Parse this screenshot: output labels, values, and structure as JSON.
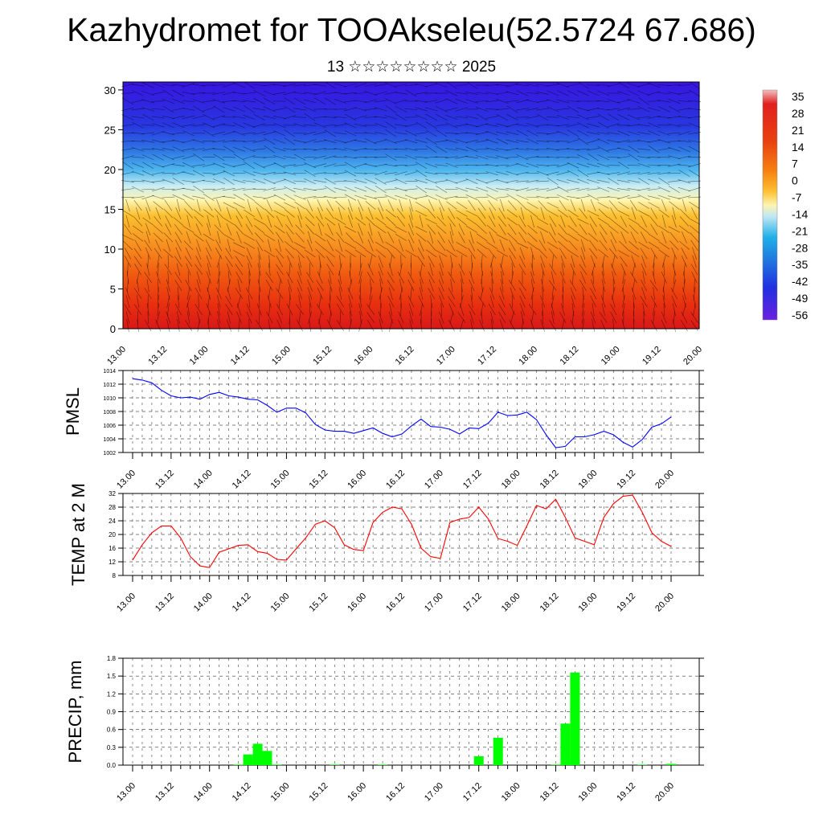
{
  "title": "Kazhydromet for TOOAkseleu(52.5724 67.686)",
  "subtitle": "13 ☆☆☆☆☆☆☆☆ 2025",
  "time_labels": [
    "13.00",
    "13.12",
    "14.00",
    "14.12",
    "15.00",
    "15.12",
    "16.00",
    "16.12",
    "17.00",
    "17.12",
    "18.00",
    "18.12",
    "19.00",
    "19.12",
    "20.00"
  ],
  "chart_data": [
    {
      "type": "heatmap",
      "description_of_axes": "x: forecast time, y: height level",
      "y_ticks": [
        0,
        5,
        10,
        15,
        20,
        25,
        30
      ],
      "ylim": [
        0,
        31
      ],
      "colorbar": {
        "labels": [
          "35",
          "28",
          "21",
          "14",
          "7",
          "0",
          "-7",
          "-14",
          "-21",
          "-28",
          "-35",
          "-42",
          "-49",
          "-56"
        ],
        "colors": [
          "#f0b0b0",
          "#e02020",
          "#d80000",
          "#e84010",
          "#f06010",
          "#f89010",
          "#fcc030",
          "#fff0a0",
          "#a8e0f0",
          "#20b0e8",
          "#2080e0",
          "#2040e0",
          "#2010e0",
          "#6020e0"
        ]
      },
      "temperature_profile_by_level": [
        {
          "level": 0,
          "value": 28
        },
        {
          "level": 5,
          "value": 18
        },
        {
          "level": 10,
          "value": 5
        },
        {
          "level": 15,
          "value": -5
        },
        {
          "level": 17,
          "value": -14
        },
        {
          "level": 20,
          "value": -35
        },
        {
          "level": 25,
          "value": -50
        },
        {
          "level": 30,
          "value": -58
        }
      ]
    },
    {
      "type": "line",
      "ylabel": "PMSL",
      "y_ticks": [
        1002,
        1004,
        1006,
        1008,
        1010,
        1012,
        1014
      ],
      "ylim": [
        1002,
        1014
      ],
      "color": "#0000ff",
      "x_step_hours": 3,
      "values": [
        1012.8,
        1012.6,
        1012.2,
        1011.1,
        1010.3,
        1010.0,
        1010.1,
        1009.8,
        1010.5,
        1010.8,
        1010.3,
        1010.1,
        1009.8,
        1009.7,
        1008.9,
        1007.9,
        1008.5,
        1008.5,
        1007.8,
        1006.1,
        1005.3,
        1005.1,
        1005.1,
        1004.8,
        1005.2,
        1005.6,
        1004.8,
        1004.3,
        1004.7,
        1005.9,
        1006.9,
        1005.8,
        1005.7,
        1005.4,
        1004.7,
        1005.6,
        1005.5,
        1006.3,
        1007.9,
        1007.4,
        1007.5,
        1007.9,
        1006.8,
        1004.6,
        1002.7,
        1002.9,
        1004.3,
        1004.3,
        1004.6,
        1005.1,
        1004.6,
        1003.5,
        1002.8,
        1003.9,
        1005.7,
        1006.2,
        1007.2
      ]
    },
    {
      "type": "line",
      "ylabel": "TEMP at 2 M",
      "y_ticks": [
        8,
        12,
        16,
        20,
        24,
        28,
        32
      ],
      "ylim": [
        8,
        32
      ],
      "color": "#ff0000",
      "x_step_hours": 3,
      "values": [
        12.5,
        17.0,
        20.5,
        22.5,
        22.5,
        19.0,
        13.5,
        10.8,
        10.3,
        14.8,
        15.8,
        16.8,
        17.0,
        15.0,
        14.5,
        12.7,
        12.5,
        15.8,
        19.0,
        23.0,
        24.0,
        22.0,
        17.0,
        15.6,
        15.3,
        23.5,
        26.5,
        28.0,
        27.5,
        23.0,
        16.0,
        13.5,
        13.0,
        23.5,
        24.5,
        25.0,
        28.0,
        24.5,
        18.8,
        18.0,
        16.8,
        22.5,
        28.5,
        27.5,
        30.3,
        25.0,
        19.0,
        18.0,
        17.0,
        25.0,
        29.0,
        31.2,
        31.5,
        26.5,
        20.5,
        18.0,
        16.5
      ]
    },
    {
      "type": "bar",
      "ylabel": "PRECIP, mm",
      "y_ticks": [
        "0.0",
        "0.3",
        "0.6",
        "0.9",
        "1.2",
        "1.5",
        "1.8"
      ],
      "ylim": [
        0,
        1.8
      ],
      "color": "#00ff00",
      "x_step_hours": 3,
      "values": [
        0,
        0,
        0,
        0,
        0,
        0,
        0,
        0,
        0,
        0,
        0,
        0.01,
        0.18,
        0.36,
        0.24,
        0.01,
        0,
        0,
        0,
        0,
        0,
        0.01,
        0,
        0,
        0,
        0,
        0.01,
        0,
        0,
        0,
        0,
        0,
        0,
        0,
        0,
        0,
        0.15,
        0,
        0.46,
        0,
        0,
        0,
        0,
        0,
        0.01,
        0.7,
        1.56,
        0,
        0,
        0,
        0,
        0,
        0,
        0.01,
        0,
        0,
        0.02
      ]
    }
  ]
}
